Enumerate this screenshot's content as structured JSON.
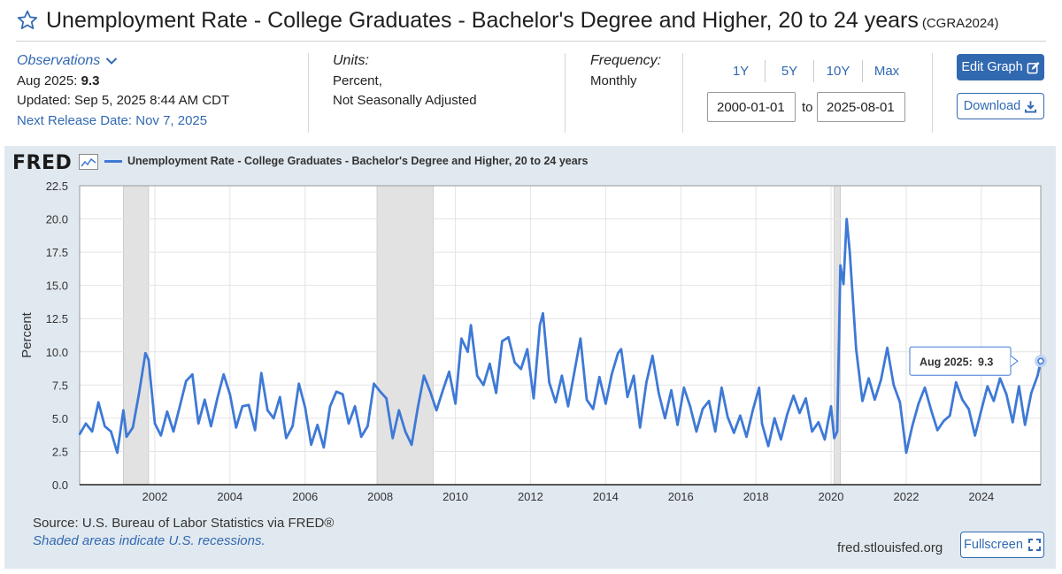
{
  "header": {
    "title": "Unemployment Rate - College Graduates - Bachelor's Degree and Higher, 20 to 24 years",
    "series_id": "(CGRA2024)"
  },
  "observations": {
    "label": "Observations",
    "latest_date": "Aug 2025:",
    "latest_value": "9.3",
    "updated": "Updated: Sep 5, 2025 8:44 AM CDT",
    "next_release": "Next Release Date: Nov 7, 2025"
  },
  "units": {
    "label": "Units:",
    "line1": "Percent,",
    "line2": "Not Seasonally Adjusted"
  },
  "frequency": {
    "label": "Frequency:",
    "value": "Monthly"
  },
  "range": {
    "buttons": [
      "1Y",
      "5Y",
      "10Y",
      "Max"
    ],
    "start": "2000-01-01",
    "to": "to",
    "end": "2025-08-01"
  },
  "actions": {
    "edit_graph": "Edit Graph",
    "download": "Download",
    "fullscreen": "Fullscreen"
  },
  "footer": {
    "source": "Source: U.S. Bureau of Labor Statistics via FRED®",
    "recession_note": "Shaded areas indicate U.S. recessions.",
    "site": "fred.stlouisfed.org"
  },
  "brand": {
    "logo_text": "FRED"
  },
  "colors": {
    "line": "#3e79d6",
    "accent": "#3169b1",
    "panel": "#e1e9f0",
    "recession": "#e2e2e2"
  },
  "tooltip": {
    "label": "Aug 2025:",
    "value": "9.3"
  },
  "chart_data": {
    "type": "line",
    "title": "",
    "legend": "Unemployment Rate - College Graduates - Bachelor's Degree and Higher, 20 to 24 years",
    "xlabel": "",
    "ylabel": "Percent",
    "ylim": [
      0,
      22.5
    ],
    "yticks": [
      "0.0",
      "2.5",
      "5.0",
      "7.5",
      "10.0",
      "12.5",
      "15.0",
      "17.5",
      "20.0",
      "22.5"
    ],
    "xticks": [
      "2002",
      "2004",
      "2006",
      "2008",
      "2010",
      "2012",
      "2014",
      "2016",
      "2018",
      "2020",
      "2022",
      "2024"
    ],
    "xlim": [
      "2000-01-01",
      "2025-08-01"
    ],
    "grid": true,
    "legend_position": "top-left",
    "recessions": [
      [
        "2001-03-01",
        "2001-11-01"
      ],
      [
        "2007-12-01",
        "2009-06-01"
      ],
      [
        "2020-02-01",
        "2020-04-01"
      ]
    ],
    "series": [
      {
        "name": "Unemployment Rate - College Graduates - Bachelor's Degree and Higher, 20 to 24 years",
        "points": [
          [
            "2000-01-01",
            3.8
          ],
          [
            "2000-03-01",
            4.6
          ],
          [
            "2000-05-01",
            4.0
          ],
          [
            "2000-07-01",
            6.2
          ],
          [
            "2000-09-01",
            4.4
          ],
          [
            "2000-11-01",
            4.0
          ],
          [
            "2001-01-01",
            2.4
          ],
          [
            "2001-03-01",
            5.6
          ],
          [
            "2001-04-01",
            3.6
          ],
          [
            "2001-06-01",
            4.3
          ],
          [
            "2001-08-01",
            6.9
          ],
          [
            "2001-10-01",
            9.9
          ],
          [
            "2001-11-01",
            9.4
          ],
          [
            "2002-01-01",
            4.6
          ],
          [
            "2002-03-01",
            3.7
          ],
          [
            "2002-05-01",
            5.5
          ],
          [
            "2002-07-01",
            4.0
          ],
          [
            "2002-09-01",
            5.9
          ],
          [
            "2002-11-01",
            7.8
          ],
          [
            "2003-01-01",
            8.3
          ],
          [
            "2003-03-01",
            4.6
          ],
          [
            "2003-05-01",
            6.4
          ],
          [
            "2003-07-01",
            4.4
          ],
          [
            "2003-09-01",
            6.5
          ],
          [
            "2003-11-01",
            8.3
          ],
          [
            "2004-01-01",
            6.8
          ],
          [
            "2004-03-01",
            4.3
          ],
          [
            "2004-05-01",
            5.9
          ],
          [
            "2004-07-01",
            6.0
          ],
          [
            "2004-09-01",
            4.1
          ],
          [
            "2004-11-01",
            8.4
          ],
          [
            "2005-01-01",
            5.6
          ],
          [
            "2005-03-01",
            5.0
          ],
          [
            "2005-05-01",
            6.6
          ],
          [
            "2005-07-01",
            3.5
          ],
          [
            "2005-09-01",
            4.4
          ],
          [
            "2005-11-01",
            7.6
          ],
          [
            "2006-01-01",
            5.8
          ],
          [
            "2006-03-01",
            3.0
          ],
          [
            "2006-05-01",
            4.5
          ],
          [
            "2006-07-01",
            2.8
          ],
          [
            "2006-09-01",
            5.9
          ],
          [
            "2006-11-01",
            7.0
          ],
          [
            "2007-01-01",
            6.8
          ],
          [
            "2007-03-01",
            4.6
          ],
          [
            "2007-05-01",
            5.9
          ],
          [
            "2007-07-01",
            3.6
          ],
          [
            "2007-09-01",
            4.4
          ],
          [
            "2007-11-01",
            7.6
          ],
          [
            "2008-01-01",
            7.0
          ],
          [
            "2008-03-01",
            6.5
          ],
          [
            "2008-05-01",
            3.5
          ],
          [
            "2008-07-01",
            5.6
          ],
          [
            "2008-09-01",
            4.0
          ],
          [
            "2008-11-01",
            3.0
          ],
          [
            "2009-01-01",
            5.8
          ],
          [
            "2009-03-01",
            8.2
          ],
          [
            "2009-05-01",
            7.0
          ],
          [
            "2009-07-01",
            5.6
          ],
          [
            "2009-09-01",
            7.1
          ],
          [
            "2009-11-01",
            8.5
          ],
          [
            "2010-01-01",
            6.1
          ],
          [
            "2010-03-01",
            11.0
          ],
          [
            "2010-05-01",
            10.0
          ],
          [
            "2010-06-01",
            12.0
          ],
          [
            "2010-08-01",
            8.2
          ],
          [
            "2010-10-01",
            7.5
          ],
          [
            "2010-12-01",
            9.1
          ],
          [
            "2011-02-01",
            6.9
          ],
          [
            "2011-04-01",
            10.8
          ],
          [
            "2011-06-01",
            11.1
          ],
          [
            "2011-08-01",
            9.2
          ],
          [
            "2011-10-01",
            8.7
          ],
          [
            "2011-12-01",
            10.2
          ],
          [
            "2012-02-01",
            6.5
          ],
          [
            "2012-04-01",
            12.0
          ],
          [
            "2012-05-01",
            12.9
          ],
          [
            "2012-07-01",
            7.7
          ],
          [
            "2012-09-01",
            6.2
          ],
          [
            "2012-11-01",
            8.2
          ],
          [
            "2013-01-01",
            5.9
          ],
          [
            "2013-03-01",
            8.4
          ],
          [
            "2013-05-01",
            11.0
          ],
          [
            "2013-07-01",
            6.4
          ],
          [
            "2013-09-01",
            5.7
          ],
          [
            "2013-11-01",
            8.1
          ],
          [
            "2014-01-01",
            6.1
          ],
          [
            "2014-03-01",
            8.3
          ],
          [
            "2014-05-01",
            9.9
          ],
          [
            "2014-06-01",
            10.2
          ],
          [
            "2014-08-01",
            6.6
          ],
          [
            "2014-10-01",
            8.2
          ],
          [
            "2014-12-01",
            4.3
          ],
          [
            "2015-02-01",
            7.7
          ],
          [
            "2015-04-01",
            9.7
          ],
          [
            "2015-06-01",
            6.9
          ],
          [
            "2015-08-01",
            5.0
          ],
          [
            "2015-10-01",
            7.1
          ],
          [
            "2015-12-01",
            4.5
          ],
          [
            "2016-02-01",
            7.3
          ],
          [
            "2016-04-01",
            5.9
          ],
          [
            "2016-06-01",
            4.0
          ],
          [
            "2016-08-01",
            5.7
          ],
          [
            "2016-10-01",
            6.3
          ],
          [
            "2016-12-01",
            4.0
          ],
          [
            "2017-02-01",
            7.3
          ],
          [
            "2017-04-01",
            5.1
          ],
          [
            "2017-06-01",
            3.9
          ],
          [
            "2017-08-01",
            5.2
          ],
          [
            "2017-10-01",
            3.6
          ],
          [
            "2017-12-01",
            5.6
          ],
          [
            "2018-02-01",
            7.3
          ],
          [
            "2018-03-01",
            4.6
          ],
          [
            "2018-05-01",
            2.9
          ],
          [
            "2018-07-01",
            5.0
          ],
          [
            "2018-09-01",
            3.4
          ],
          [
            "2018-11-01",
            5.3
          ],
          [
            "2019-01-01",
            6.7
          ],
          [
            "2019-03-01",
            5.4
          ],
          [
            "2019-05-01",
            6.5
          ],
          [
            "2019-07-01",
            4.0
          ],
          [
            "2019-09-01",
            4.7
          ],
          [
            "2019-11-01",
            3.4
          ],
          [
            "2020-01-01",
            5.9
          ],
          [
            "2020-02-01",
            3.5
          ],
          [
            "2020-03-01",
            4.0
          ],
          [
            "2020-04-01",
            16.5
          ],
          [
            "2020-05-01",
            15.1
          ],
          [
            "2020-06-01",
            20.0
          ],
          [
            "2020-07-01",
            17.5
          ],
          [
            "2020-09-01",
            10.2
          ],
          [
            "2020-11-01",
            6.3
          ],
          [
            "2021-01-01",
            8.0
          ],
          [
            "2021-03-01",
            6.4
          ],
          [
            "2021-05-01",
            7.9
          ],
          [
            "2021-07-01",
            10.3
          ],
          [
            "2021-09-01",
            7.5
          ],
          [
            "2021-11-01",
            6.2
          ],
          [
            "2022-01-01",
            2.4
          ],
          [
            "2022-03-01",
            4.4
          ],
          [
            "2022-05-01",
            6.1
          ],
          [
            "2022-07-01",
            7.3
          ],
          [
            "2022-09-01",
            5.6
          ],
          [
            "2022-11-01",
            4.1
          ],
          [
            "2023-01-01",
            4.8
          ],
          [
            "2023-03-01",
            5.2
          ],
          [
            "2023-05-01",
            7.7
          ],
          [
            "2023-07-01",
            6.4
          ],
          [
            "2023-09-01",
            5.7
          ],
          [
            "2023-11-01",
            3.7
          ],
          [
            "2024-01-01",
            5.6
          ],
          [
            "2024-03-01",
            7.4
          ],
          [
            "2024-05-01",
            6.3
          ],
          [
            "2024-07-01",
            8.0
          ],
          [
            "2024-09-01",
            6.8
          ],
          [
            "2024-11-01",
            4.7
          ],
          [
            "2025-01-01",
            7.4
          ],
          [
            "2025-03-01",
            4.5
          ],
          [
            "2025-05-01",
            6.9
          ],
          [
            "2025-07-01",
            8.2
          ],
          [
            "2025-08-01",
            9.3
          ]
        ]
      }
    ]
  }
}
